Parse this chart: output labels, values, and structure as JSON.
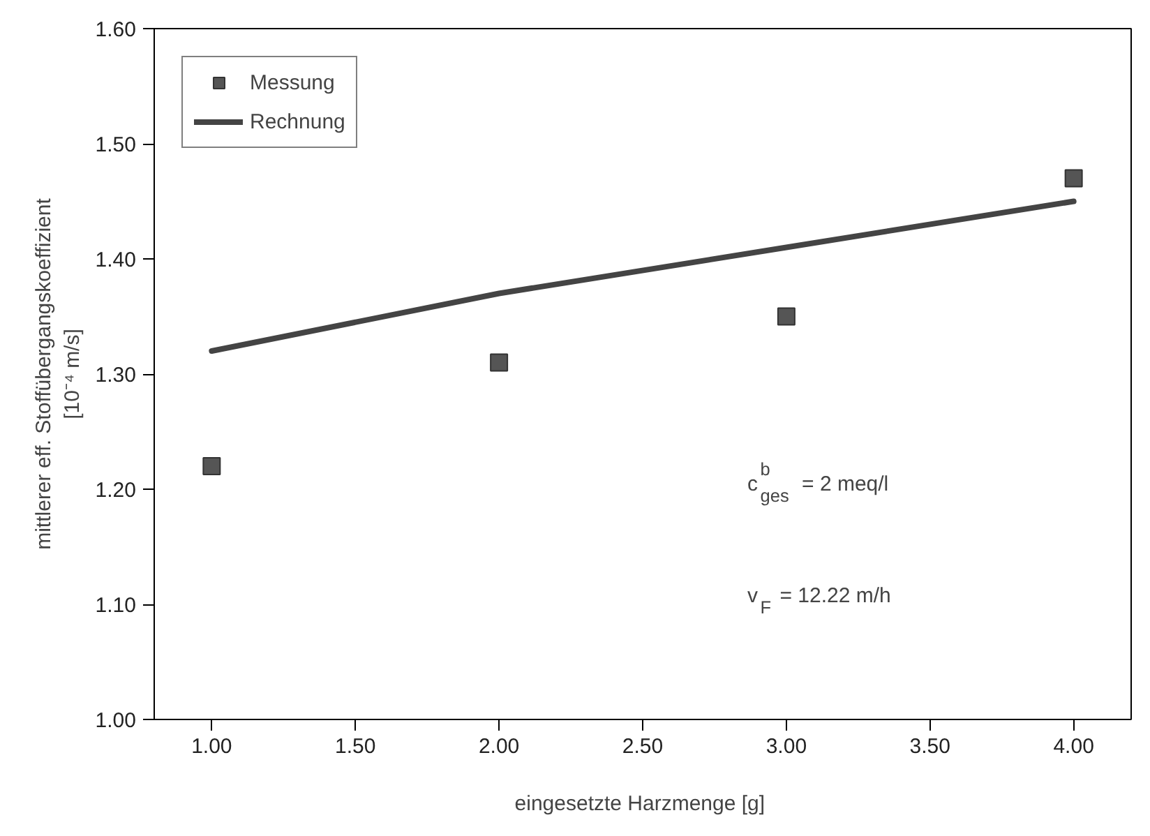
{
  "chart_data": {
    "type": "scatter",
    "xlabel": "eingesetzte Harzmenge  [g]",
    "ylabel": "mittlerer eff. Stoffübergangskoeffizient\n[10⁻⁴ m/s]",
    "xlim": [
      0.8,
      4.2
    ],
    "ylim": [
      1.0,
      1.6
    ],
    "xticks": [
      {
        "value": 1,
        "label": "1.00"
      },
      {
        "value": 1.5,
        "label": "1.50"
      },
      {
        "value": 2,
        "label": "2.00"
      },
      {
        "value": 2.5,
        "label": "2.50"
      },
      {
        "value": 3,
        "label": "3.00"
      },
      {
        "value": 3.5,
        "label": "3.50"
      },
      {
        "value": 4,
        "label": "4.00"
      }
    ],
    "yticks": [
      {
        "value": 1.0,
        "label": "1.00"
      },
      {
        "value": 1.1,
        "label": "1.10"
      },
      {
        "value": 1.2,
        "label": "1.20"
      },
      {
        "value": 1.3,
        "label": "1.30"
      },
      {
        "value": 1.4,
        "label": "1.40"
      },
      {
        "value": 1.5,
        "label": "1.50"
      },
      {
        "value": 1.6,
        "label": "1.60"
      }
    ],
    "series": [
      {
        "name": "Messung",
        "marker": "square",
        "color": "#555555",
        "x": [
          1,
          2,
          3,
          4
        ],
        "values": [
          1.22,
          1.31,
          1.35,
          1.47
        ]
      },
      {
        "name": "Rechnung",
        "type": "line",
        "marker": "none",
        "color": "#444444",
        "x": [
          1,
          2,
          3,
          4
        ],
        "values": [
          1.32,
          1.37,
          1.41,
          1.45
        ]
      }
    ],
    "annotations": [
      "c$^{b}$$_{ges}$ = 2 meq/l",
      "v$_{F}$ = 12.22 m/h"
    ],
    "legend": "top left",
    "grid": false
  }
}
